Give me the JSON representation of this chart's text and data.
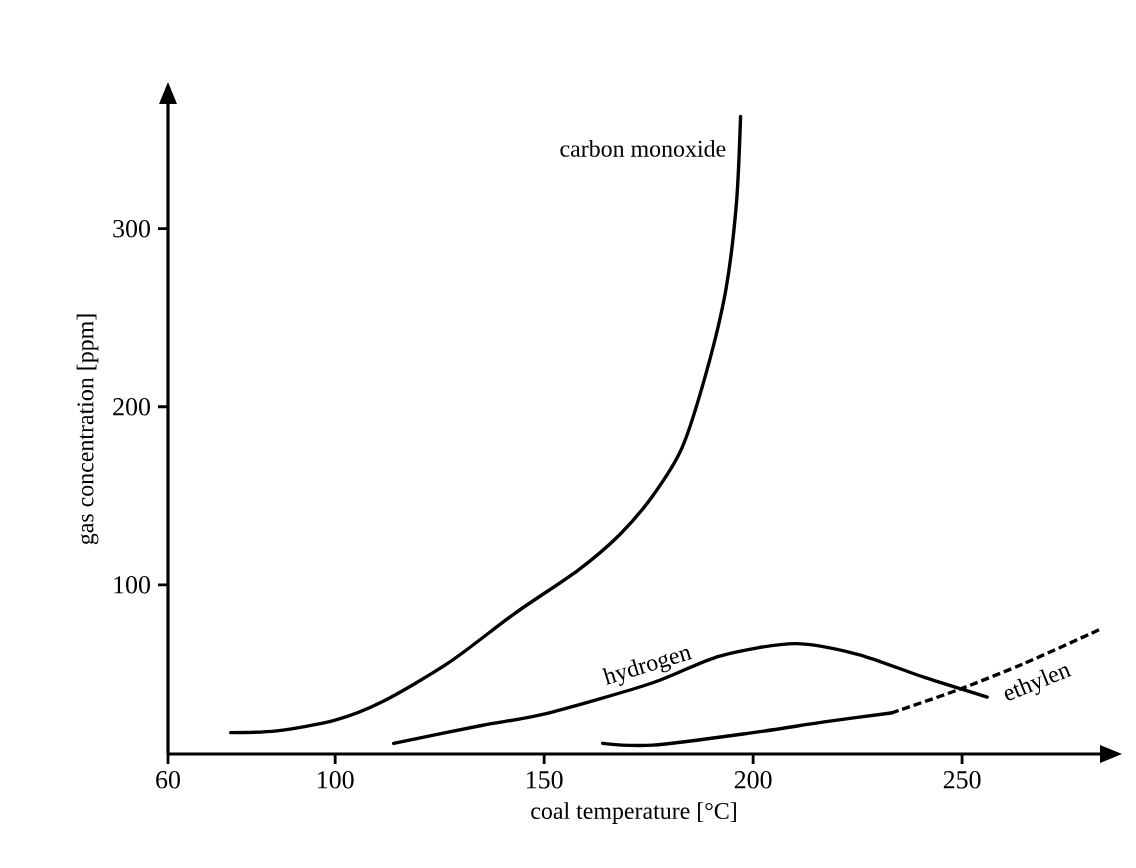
{
  "chart_data": {
    "type": "line",
    "xlabel": "coal temperature [°C]",
    "ylabel": "gas concentration [ppm]",
    "xlim": [
      60,
      283
    ],
    "ylim": [
      5,
      370
    ],
    "xticks": [
      60,
      100,
      150,
      200,
      250
    ],
    "yticks": [
      100,
      200,
      300
    ],
    "grid": false,
    "legend": false,
    "marker": "none",
    "series": [
      {
        "name": "carbon monoxide",
        "color": "#000000",
        "line_style": "solid",
        "x": [
          75,
          86,
          100,
          111,
          127,
          143,
          158,
          168,
          176,
          183,
          189,
          193.5,
          196,
          197
        ],
        "values": [
          17,
          18,
          24,
          34,
          56,
          84,
          108,
          128,
          150,
          177,
          221,
          266,
          314,
          363
        ]
      },
      {
        "name": "hydrogen",
        "color": "#000000",
        "line_style": "solid",
        "x": [
          114,
          135,
          151,
          176,
          192,
          210,
          225,
          241,
          256
        ],
        "values": [
          11,
          21,
          28,
          45,
          60,
          67,
          61,
          48,
          37
        ]
      },
      {
        "color": "#000000",
        "line_style": "solid",
        "x": [
          164,
          176,
          200,
          217,
          233
        ],
        "values": [
          11,
          10,
          17,
          23,
          28
        ]
      },
      {
        "name": "ethylen",
        "color": "#000000",
        "line_style": "dashed",
        "x": [
          233,
          249,
          265,
          283
        ],
        "values": [
          28,
          41,
          56,
          75
        ]
      }
    ]
  }
}
